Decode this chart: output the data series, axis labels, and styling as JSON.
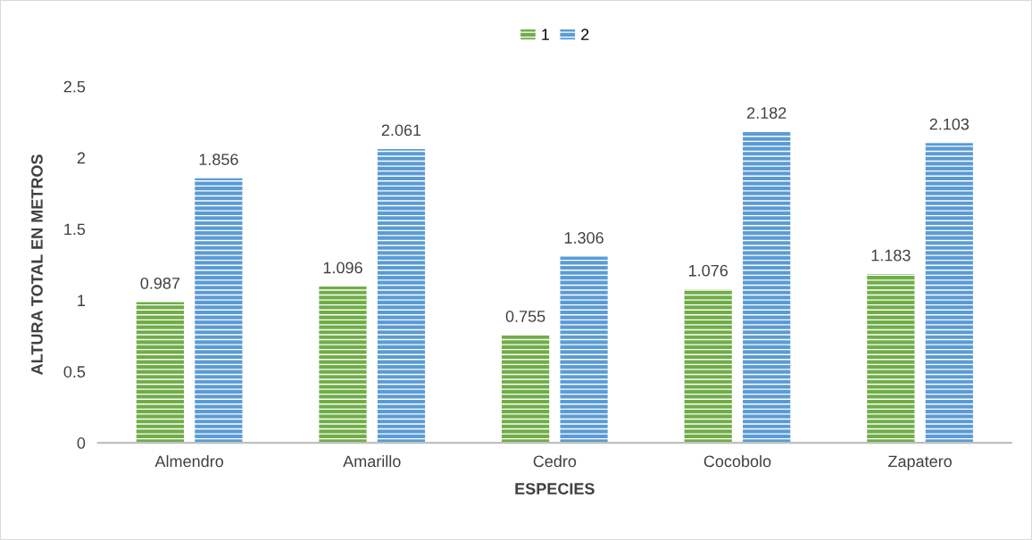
{
  "chart_data": {
    "type": "bar",
    "xlabel": "ESPECIES",
    "ylabel": "ALTURA TOTAL EN METROS",
    "categories": [
      "Almendro",
      "Amarillo",
      "Cedro",
      "Cocobolo",
      "Zapatero"
    ],
    "series": [
      {
        "name": "1",
        "color": "#70ad47",
        "values": [
          0.987,
          1.096,
          0.755,
          1.076,
          1.183
        ]
      },
      {
        "name": "2",
        "color": "#5b9bd5",
        "values": [
          1.856,
          2.061,
          1.306,
          2.182,
          2.103
        ]
      }
    ],
    "ylim": [
      0,
      2.5
    ],
    "yticks": [
      0,
      0.5,
      1,
      1.5,
      2,
      2.5
    ],
    "data_labels": true,
    "grid": false,
    "legend": "top"
  }
}
